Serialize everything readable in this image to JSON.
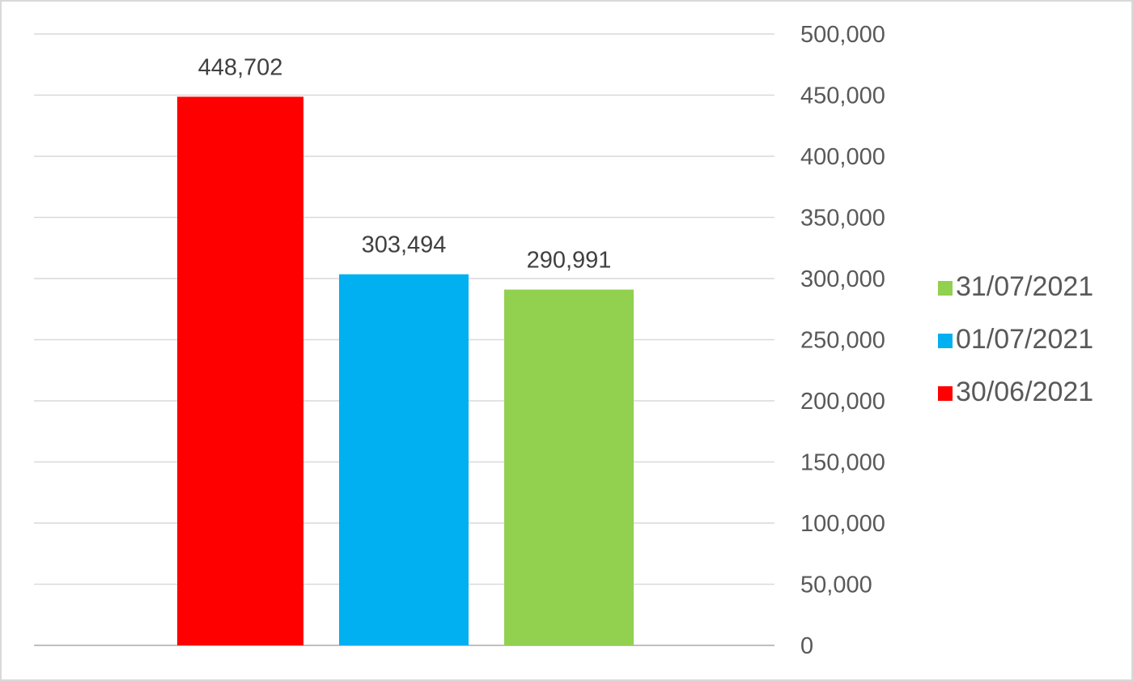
{
  "chart_data": {
    "type": "bar",
    "title": "",
    "xlabel": "",
    "ylabel": "",
    "ylim": [
      0,
      500000
    ],
    "ytick_step": 50000,
    "y_axis_position": "right",
    "grid": true,
    "legend_position": "right",
    "series": [
      {
        "name": "30/06/2021",
        "value": 448702,
        "value_label": "448,702",
        "color": "#ff0000"
      },
      {
        "name": "01/07/2021",
        "value": 303494,
        "value_label": "303,494",
        "color": "#00b0f0"
      },
      {
        "name": "31/07/2021",
        "value": 290991,
        "value_label": "290,991",
        "color": "#92d050"
      }
    ],
    "yticks": [
      "0",
      "50,000",
      "100,000",
      "150,000",
      "200,000",
      "250,000",
      "300,000",
      "350,000",
      "400,000",
      "450,000",
      "500,000"
    ],
    "legend_order": [
      "31/07/2021",
      "01/07/2021",
      "30/06/2021"
    ]
  }
}
